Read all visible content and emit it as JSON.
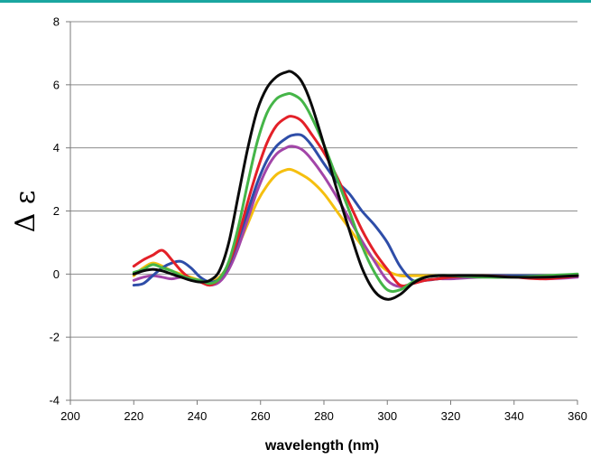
{
  "chart_data": {
    "type": "line",
    "xlabel": "wavelength (nm)",
    "ylabel": "Δ ε",
    "xlim": [
      200,
      360
    ],
    "ylim": [
      -4,
      8
    ],
    "xticks": [
      200,
      220,
      240,
      260,
      280,
      300,
      320,
      340,
      360
    ],
    "yticks": [
      -4,
      -2,
      0,
      2,
      4,
      6,
      8
    ],
    "grid": "horizontal",
    "series": [
      {
        "color": "#f5bf0f",
        "x": [
          220,
          223,
          226,
          229,
          232,
          235,
          238,
          241,
          244,
          247,
          250,
          253,
          256,
          259,
          262,
          265,
          268,
          270,
          273,
          276,
          280,
          284,
          288,
          292,
          296,
          300,
          304,
          308,
          312,
          316,
          320,
          330,
          340,
          350,
          360
        ],
        "y": [
          -0.05,
          0.2,
          0.35,
          0.25,
          0.1,
          0.0,
          -0.1,
          -0.2,
          -0.25,
          -0.1,
          0.3,
          0.9,
          1.6,
          2.3,
          2.8,
          3.15,
          3.3,
          3.3,
          3.15,
          2.95,
          2.55,
          2.0,
          1.45,
          0.9,
          0.45,
          0.1,
          -0.05,
          -0.05,
          -0.05,
          -0.05,
          -0.05,
          -0.05,
          -0.1,
          -0.05,
          -0.05
        ]
      },
      {
        "color": "#a245a8",
        "x": [
          220,
          223,
          226,
          229,
          232,
          235,
          238,
          241,
          244,
          247,
          250,
          253,
          256,
          259,
          262,
          265,
          268,
          270,
          273,
          276,
          280,
          284,
          288,
          292,
          296,
          300,
          304,
          308,
          312,
          316,
          320,
          330,
          340,
          350,
          360
        ],
        "y": [
          -0.2,
          -0.1,
          -0.05,
          -0.1,
          -0.15,
          -0.1,
          -0.15,
          -0.25,
          -0.35,
          -0.25,
          0.15,
          0.85,
          1.75,
          2.65,
          3.35,
          3.8,
          4.0,
          4.05,
          3.95,
          3.65,
          3.1,
          2.45,
          1.75,
          1.05,
          0.4,
          -0.2,
          -0.4,
          -0.3,
          -0.2,
          -0.15,
          -0.15,
          -0.1,
          -0.1,
          -0.15,
          -0.1
        ]
      },
      {
        "color": "#2e4da8",
        "x": [
          220,
          223,
          226,
          229,
          232,
          235,
          238,
          241,
          244,
          247,
          250,
          253,
          256,
          259,
          262,
          265,
          268,
          270,
          273,
          276,
          280,
          284,
          288,
          292,
          296,
          300,
          304,
          308,
          312,
          316,
          320,
          330,
          340,
          350,
          360
        ],
        "y": [
          -0.35,
          -0.3,
          -0.05,
          0.2,
          0.35,
          0.4,
          0.2,
          -0.1,
          -0.25,
          -0.15,
          0.3,
          1.1,
          2.0,
          2.9,
          3.6,
          4.05,
          4.3,
          4.4,
          4.4,
          4.1,
          3.5,
          2.95,
          2.55,
          2.0,
          1.55,
          1.0,
          0.25,
          -0.2,
          -0.2,
          -0.15,
          -0.1,
          -0.05,
          -0.05,
          -0.05,
          -0.05
        ]
      },
      {
        "color": "#e32028",
        "x": [
          220,
          223,
          226,
          229,
          232,
          235,
          238,
          241,
          244,
          247,
          250,
          253,
          256,
          259,
          262,
          265,
          268,
          270,
          273,
          276,
          280,
          284,
          288,
          292,
          296,
          300,
          304,
          308,
          312,
          316,
          320,
          330,
          340,
          350,
          360
        ],
        "y": [
          0.25,
          0.45,
          0.6,
          0.75,
          0.45,
          0.1,
          -0.15,
          -0.25,
          -0.35,
          -0.15,
          0.35,
          1.2,
          2.3,
          3.3,
          4.15,
          4.7,
          4.95,
          5.0,
          4.85,
          4.45,
          3.85,
          3.1,
          2.25,
          1.4,
          0.7,
          0.15,
          -0.35,
          -0.3,
          -0.2,
          -0.15,
          -0.1,
          -0.05,
          -0.1,
          -0.15,
          -0.05
        ]
      },
      {
        "color": "#45b548",
        "x": [
          220,
          223,
          226,
          229,
          232,
          235,
          238,
          241,
          244,
          247,
          250,
          253,
          256,
          259,
          262,
          265,
          268,
          270,
          273,
          276,
          280,
          284,
          288,
          292,
          296,
          300,
          304,
          308,
          312,
          316,
          320,
          330,
          340,
          350,
          360
        ],
        "y": [
          0.05,
          0.15,
          0.3,
          0.2,
          0.1,
          -0.05,
          -0.15,
          -0.2,
          -0.3,
          -0.15,
          0.4,
          1.5,
          2.9,
          4.2,
          5.1,
          5.55,
          5.7,
          5.7,
          5.5,
          5.0,
          4.1,
          3.05,
          2.0,
          0.9,
          0.05,
          -0.5,
          -0.5,
          -0.25,
          -0.1,
          -0.05,
          -0.05,
          -0.1,
          -0.1,
          -0.05,
          0.0
        ]
      },
      {
        "color": "#0a0a0a",
        "x": [
          220,
          223,
          226,
          229,
          232,
          235,
          238,
          241,
          244,
          247,
          250,
          253,
          256,
          259,
          262,
          265,
          268,
          270,
          273,
          276,
          280,
          284,
          288,
          292,
          296,
          300,
          304,
          308,
          312,
          316,
          320,
          330,
          340,
          350,
          360
        ],
        "y": [
          0.0,
          0.1,
          0.15,
          0.1,
          0.0,
          -0.1,
          -0.2,
          -0.25,
          -0.2,
          0.1,
          1.0,
          2.5,
          4.0,
          5.2,
          5.9,
          6.25,
          6.4,
          6.4,
          6.1,
          5.4,
          4.1,
          2.7,
          1.4,
          0.2,
          -0.55,
          -0.8,
          -0.65,
          -0.3,
          -0.1,
          -0.05,
          -0.05,
          -0.05,
          -0.1,
          -0.1,
          -0.05
        ]
      }
    ]
  }
}
